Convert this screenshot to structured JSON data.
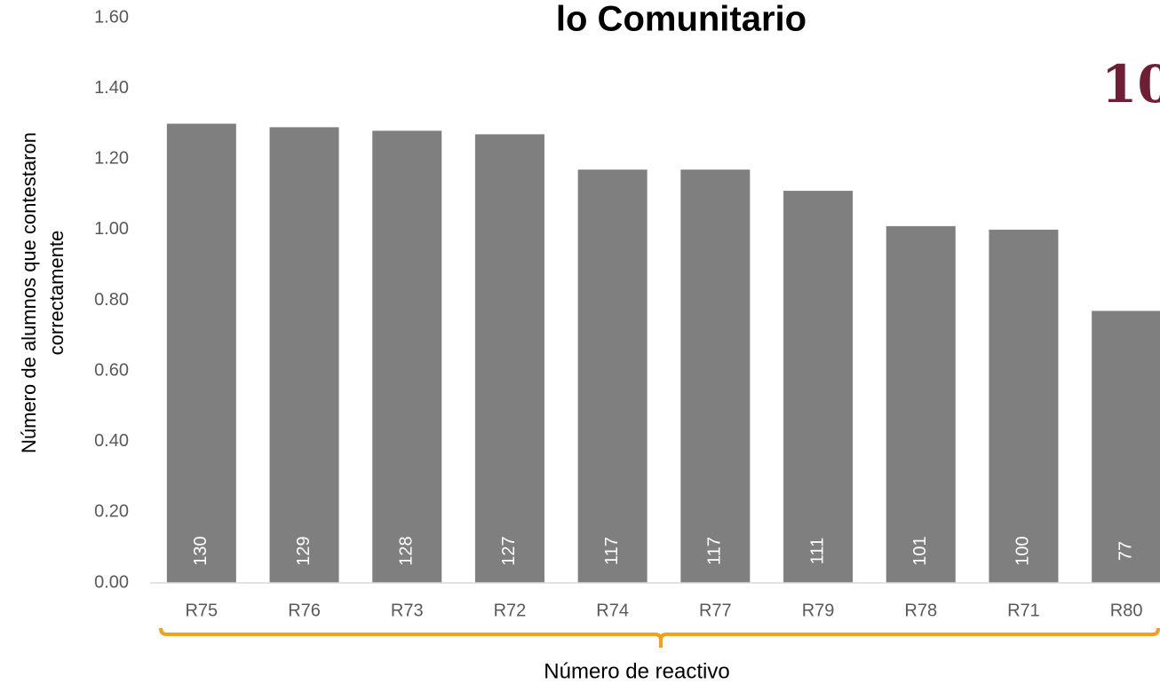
{
  "chart_data": {
    "type": "bar",
    "title": "lo Comunitario",
    "annotation": "10",
    "y_label": [
      "Número de alumnos que contestaron",
      "correctamente"
    ],
    "x_label": "Número de reactivo",
    "categories": [
      "R75",
      "R76",
      "R73",
      "R72",
      "R74",
      "R77",
      "R79",
      "R78",
      "R71",
      "R80"
    ],
    "values": [
      1.3,
      1.29,
      1.28,
      1.27,
      1.17,
      1.17,
      1.11,
      1.01,
      1.0,
      0.77
    ],
    "value_labels": [
      "130",
      "129",
      "128",
      "127",
      "117",
      "117",
      "111",
      "101",
      "100",
      "77"
    ],
    "color": "#7f7f7f",
    "ylim": [
      0,
      1.6
    ],
    "yticks": [
      {
        "value": 0,
        "label": "0.00"
      },
      {
        "value": 0.2,
        "label": "0.20"
      },
      {
        "value": 0.4,
        "label": "0.40"
      },
      {
        "value": 0.6,
        "label": "0.60"
      },
      {
        "value": 0.8,
        "label": "0.80"
      },
      {
        "value": 1,
        "label": "1.00"
      },
      {
        "value": 1.2,
        "label": "1.20"
      },
      {
        "value": 1.4,
        "label": "1.40"
      },
      {
        "value": 1.6,
        "label": "1.60"
      }
    ],
    "grid": false
  }
}
